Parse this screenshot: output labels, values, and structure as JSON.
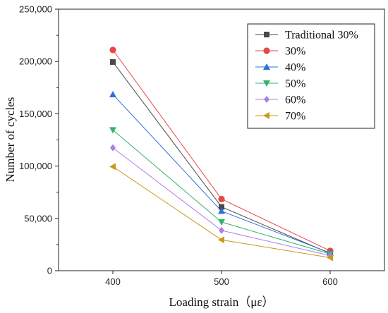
{
  "chart_data": {
    "type": "line",
    "title": "",
    "xlabel": "Loading strain（με）",
    "ylabel": "Number of cycles",
    "x": [
      400,
      500,
      600
    ],
    "xlim": [
      350,
      650
    ],
    "ylim": [
      0,
      250000
    ],
    "x_ticks": [
      400,
      500,
      600
    ],
    "y_ticks": [
      0,
      50000,
      100000,
      150000,
      200000,
      250000
    ],
    "x_tick_labels": [
      "400",
      "500",
      "600"
    ],
    "y_tick_labels": [
      "0",
      "50,000",
      "100,000",
      "150,000",
      "200,000",
      "250,000"
    ],
    "grid": false,
    "legend_position": "top-right",
    "series": [
      {
        "name": "Traditional 30%",
        "marker": "square",
        "color": "#4a4a4a",
        "values": [
          199500,
          61000,
          16500
        ]
      },
      {
        "name": "30%",
        "marker": "circle",
        "color": "#e8474a",
        "values": [
          211000,
          68500,
          19000
        ]
      },
      {
        "name": "40%",
        "marker": "triangle-up",
        "color": "#2f6fd6",
        "values": [
          168500,
          57000,
          17000
        ]
      },
      {
        "name": "50%",
        "marker": "triangle-down",
        "color": "#34b36b",
        "values": [
          134500,
          46500,
          16000
        ]
      },
      {
        "name": "60%",
        "marker": "diamond",
        "color": "#b07ee6",
        "values": [
          117500,
          38500,
          14500
        ]
      },
      {
        "name": "70%",
        "marker": "triangle-left",
        "color": "#c99a1c",
        "values": [
          99500,
          29500,
          12500
        ]
      }
    ]
  }
}
